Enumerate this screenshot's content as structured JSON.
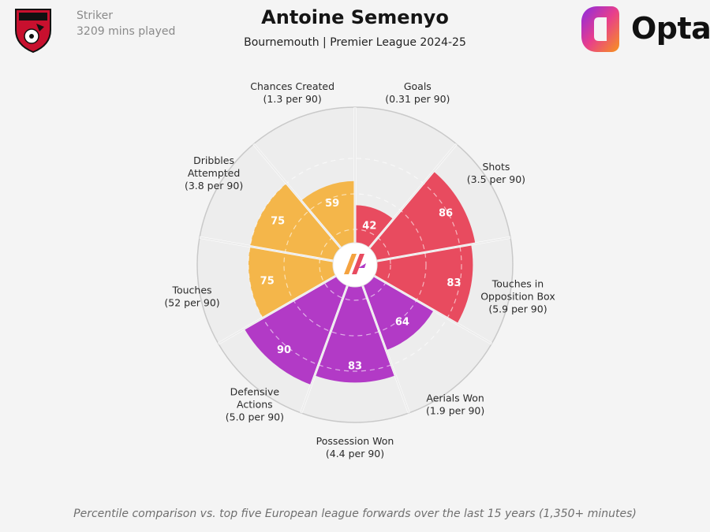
{
  "header": {
    "position": "Striker",
    "minutes": "3209 mins played",
    "player_name": "Antoine Semenyo",
    "subtitle": "Bournemouth | Premier League 2024-25",
    "brand": "Opta"
  },
  "footnote": "Percentile comparison vs. top five European league forwards over the last 15 years (1,350+ minutes)",
  "colors": {
    "attacking": "#e84b5f",
    "possession": "#b23ac6",
    "passing": "#f4b64a",
    "background": "#f4f4f4",
    "grid": "#d6d6d6",
    "bar_label": "#ffffff"
  },
  "chart_data": {
    "type": "radar-bar",
    "scale": [
      0,
      100
    ],
    "segments": [
      {
        "metric": "Goals",
        "detail": "(0.31 per 90)",
        "percentile": 42,
        "group": "attacking"
      },
      {
        "metric": "Shots",
        "detail": "(3.5 per 90)",
        "percentile": 86,
        "group": "attacking"
      },
      {
        "metric": "Touches in Opposition Box",
        "detail": "(5.9 per 90)",
        "percentile": 83,
        "group": "attacking"
      },
      {
        "metric": "Aerials Won",
        "detail": "(1.9 per 90)",
        "percentile": 64,
        "group": "possession"
      },
      {
        "metric": "Possession Won",
        "detail": "(4.4 per 90)",
        "percentile": 83,
        "group": "possession"
      },
      {
        "metric": "Defensive Actions",
        "detail": "(5.0 per 90)",
        "percentile": 90,
        "group": "possession"
      },
      {
        "metric": "Touches",
        "detail": "(52 per 90)",
        "percentile": 75,
        "group": "passing"
      },
      {
        "metric": "Dribbles Attempted",
        "detail": "(3.8 per 90)",
        "percentile": 75,
        "group": "passing"
      },
      {
        "metric": "Chances Created",
        "detail": "(1.3 per 90)",
        "percentile": 59,
        "group": "passing"
      }
    ]
  }
}
